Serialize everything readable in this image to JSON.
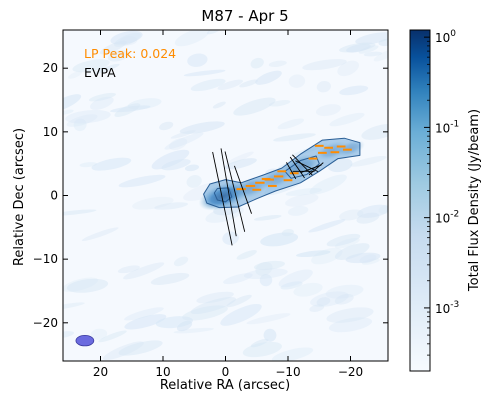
{
  "chart_data": {
    "type": "heatmap",
    "title": "M87 - Apr 5",
    "xlabel": "Relative RA (arcsec)",
    "ylabel": "Relative Dec (arcsec)",
    "xlim": [
      26,
      -26
    ],
    "ylim": [
      -26,
      26
    ],
    "x_ticks": [
      20,
      10,
      0,
      -10,
      -20
    ],
    "y_ticks": [
      20,
      10,
      0,
      -10,
      -20
    ],
    "x_tick_labels": [
      "20",
      "10",
      "0",
      "−10",
      "−20"
    ],
    "y_tick_labels": [
      "20",
      "10",
      "0",
      "−10",
      "−20"
    ],
    "colorbar": {
      "label": "Total Flux Density (Jy/beam)",
      "scale": "log",
      "range": [
        0.0002,
        1.2
      ],
      "ticks": [
        {
          "base": "10",
          "exp": "0",
          "value": 1
        },
        {
          "base": "10",
          "exp": "-1",
          "value": 0.1
        },
        {
          "base": "10",
          "exp": "-2",
          "value": 0.01
        },
        {
          "base": "10",
          "exp": "-3",
          "value": 0.001
        }
      ],
      "color_low": "#f7fbff",
      "color_high": "#08306b"
    },
    "annotations": {
      "lp_peak": "LP Peak: 0.024",
      "evpa": "EVPA",
      "lp_color": "#ff8c00"
    },
    "beam": {
      "x": 22.5,
      "y": -22.8,
      "major_arcsec": 2.2,
      "minor_arcsec": 1.1,
      "color": "#6b6bdf"
    },
    "jet": {
      "knots": [
        {
          "name": "core",
          "x": 0.3,
          "y": -0.1,
          "flux": 0.9
        },
        {
          "x": -4,
          "y": 1.2,
          "flux": 0.08
        },
        {
          "x": -8,
          "y": 2.6,
          "flux": 0.04
        },
        {
          "x": -12,
          "y": 4.6,
          "flux": 0.15
        },
        {
          "x": -17,
          "y": 7,
          "flux": 0.03
        },
        {
          "x": -20,
          "y": 7.4,
          "flux": 0.01
        }
      ],
      "contours": [
        {
          "level": "outer",
          "points": [
            [
              3.5,
              0.2
            ],
            [
              2.5,
              1.8
            ],
            [
              0,
              2.5
            ],
            [
              -2.5,
              2
            ],
            [
              -6,
              3.2
            ],
            [
              -9,
              4.3
            ],
            [
              -12,
              6.5
            ],
            [
              -15.5,
              8.7
            ],
            [
              -19,
              9
            ],
            [
              -21.5,
              8.3
            ],
            [
              -21.5,
              6.3
            ],
            [
              -18,
              5.8
            ],
            [
              -15,
              3.8
            ],
            [
              -12,
              2
            ],
            [
              -8,
              0.7
            ],
            [
              -5,
              -0.5
            ],
            [
              -2,
              -1.8
            ],
            [
              1,
              -1.9
            ],
            [
              3,
              -1.2
            ]
          ]
        },
        {
          "level": "inner",
          "points": [
            [
              1.8,
              0.4
            ],
            [
              1.3,
              1.1
            ],
            [
              -0.5,
              1.2
            ],
            [
              -1,
              -0.2
            ],
            [
              0,
              -1
            ],
            [
              1.3,
              -0.7
            ]
          ]
        },
        {
          "level": "inner",
          "points": [
            [
              -9.5,
              3.8
            ],
            [
              -12,
              5.5
            ],
            [
              -14.5,
              6.2
            ],
            [
              -15,
              5
            ],
            [
              -13,
              3.3
            ],
            [
              -10.5,
              2.7
            ]
          ]
        }
      ],
      "evpa_vectors": [
        {
          "x": 0.5,
          "y": -0.5,
          "len": 15,
          "angle": 12
        },
        {
          "x": -0.5,
          "y": 0.5,
          "len": 14,
          "angle": 10
        },
        {
          "x": -1.5,
          "y": 0.6,
          "len": 13,
          "angle": 14
        },
        {
          "x": -2.8,
          "y": 0.9,
          "len": 8,
          "angle": 20
        },
        {
          "x": -11.5,
          "y": 4.4,
          "len": 4,
          "angle": 35
        },
        {
          "x": -12.3,
          "y": 4.8,
          "len": 4.5,
          "angle": 45
        },
        {
          "x": -13,
          "y": 4.6,
          "len": 4,
          "angle": 65
        },
        {
          "x": -13.7,
          "y": 4.2,
          "len": 3.5,
          "angle": 110
        },
        {
          "x": -14.5,
          "y": 4.2,
          "len": 3,
          "angle": 130
        },
        {
          "x": -10.5,
          "y": 3.9,
          "len": 3,
          "angle": 30
        },
        {
          "x": -12.5,
          "y": 3.8,
          "len": 3.5,
          "angle": 90
        }
      ],
      "lp_vectors": [
        {
          "x": -2.5,
          "y": 1.0,
          "len": 1.5,
          "angle": 90
        },
        {
          "x": -4.0,
          "y": 1.5,
          "len": 1.5,
          "angle": 90
        },
        {
          "x": -5.5,
          "y": 2.0,
          "len": 1.5,
          "angle": 90
        },
        {
          "x": -7.0,
          "y": 2.5,
          "len": 1.5,
          "angle": 90
        },
        {
          "x": -8.5,
          "y": 3.0,
          "len": 1.5,
          "angle": 90
        },
        {
          "x": -5.0,
          "y": 0.9,
          "len": 1.4,
          "angle": 90
        },
        {
          "x": -7.5,
          "y": 1.5,
          "len": 1.4,
          "angle": 90
        },
        {
          "x": -10.0,
          "y": 2.4,
          "len": 1.4,
          "angle": 90
        },
        {
          "x": -11.0,
          "y": 3.5,
          "len": 1.4,
          "angle": 90
        },
        {
          "x": -14.0,
          "y": 5.8,
          "len": 1.4,
          "angle": 90
        },
        {
          "x": -15.5,
          "y": 6.7,
          "len": 1.4,
          "angle": 90
        },
        {
          "x": -16.5,
          "y": 7.5,
          "len": 1.4,
          "angle": 90
        },
        {
          "x": -17.5,
          "y": 6.8,
          "len": 1.4,
          "angle": 90
        },
        {
          "x": -18.5,
          "y": 7.7,
          "len": 1.4,
          "angle": 90
        },
        {
          "x": -19.5,
          "y": 7.2,
          "len": 1.4,
          "angle": 90
        },
        {
          "x": -15.0,
          "y": 7.8,
          "len": 1.4,
          "angle": 90
        },
        {
          "x": -6.5,
          "y": 2.6,
          "len": 1.4,
          "angle": 90
        },
        {
          "x": -9.0,
          "y": 3.8,
          "len": 1.4,
          "angle": 90
        }
      ]
    }
  }
}
